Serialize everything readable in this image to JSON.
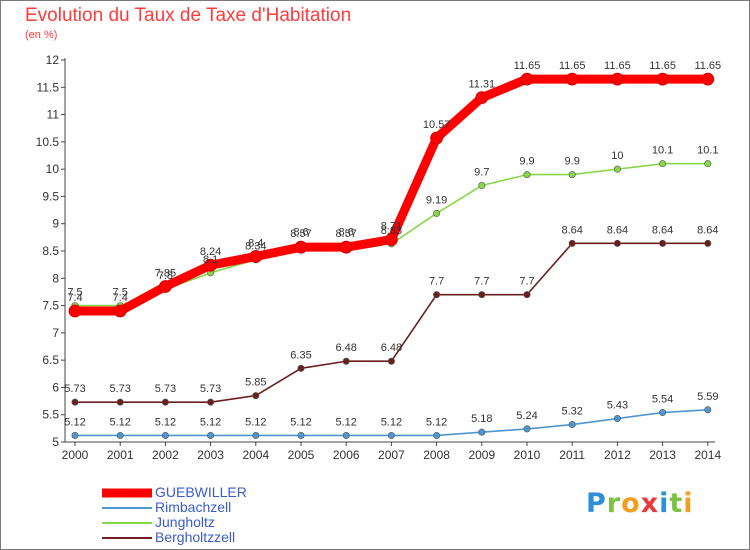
{
  "header": {
    "title": "Evolution du Taux de Taxe d'Habitation",
    "subtitle": "(en %)"
  },
  "logo": {
    "letters": [
      "P",
      "r",
      "o",
      "x",
      "i",
      "t",
      "i"
    ],
    "colors": [
      "#2e8fd6",
      "#7cc243",
      "#f0a020",
      "#e83a3a",
      "#2e8fd6",
      "#7cc243",
      "#f0a020"
    ]
  },
  "chart_data": {
    "type": "line",
    "x": [
      2000,
      2001,
      2002,
      2003,
      2004,
      2005,
      2006,
      2007,
      2008,
      2009,
      2010,
      2011,
      2012,
      2013,
      2014
    ],
    "ylim": [
      5,
      12
    ],
    "yticks": [
      "5",
      "5.5",
      "6",
      "6.5",
      "7",
      "7.5",
      "8",
      "8.5",
      "9",
      "9.5",
      "10",
      "10.5",
      "11",
      "11.5",
      "12"
    ],
    "grid": false,
    "legend_position": "bottom-left",
    "series": [
      {
        "name": "GUEBWILLER",
        "color": "#ff0000",
        "values": [
          7.4,
          7.4,
          7.85,
          8.24,
          8.4,
          8.57,
          8.57,
          8.71,
          10.57,
          11.31,
          11.65,
          11.65,
          11.65,
          11.65,
          11.65
        ],
        "labels": [
          "7.4",
          "7.4",
          "7.85",
          "8.24",
          "8.4",
          "8.57",
          "8.57",
          "8.71",
          "10.57",
          "11.31",
          "11.65",
          "11.65",
          "11.65",
          "11.65",
          "11.65"
        ]
      },
      {
        "name": "Rimbachzell",
        "color": "#4f96d0",
        "values": [
          5.12,
          5.12,
          5.12,
          5.12,
          5.12,
          5.12,
          5.12,
          5.12,
          5.12,
          5.18,
          5.24,
          5.32,
          5.43,
          5.54,
          5.59
        ],
        "labels": [
          "5.12",
          "5.12",
          "5.12",
          "5.12",
          "5.12",
          "5.12",
          "5.12",
          "5.12",
          "5.12",
          "5.18",
          "5.24",
          "5.32",
          "5.43",
          "5.54",
          "5.59"
        ]
      },
      {
        "name": "Jungholtz",
        "color": "#88d64a",
        "values": [
          7.5,
          7.5,
          7.8,
          8.1,
          8.34,
          8.6,
          8.6,
          8.63,
          9.19,
          9.7,
          9.9,
          9.9,
          10,
          10.1,
          10.1
        ],
        "labels": [
          "7.5",
          "7.5",
          "7.8",
          "8.1",
          "8.34",
          "8.6",
          "8.6",
          "8.63",
          "9.19",
          "9.7",
          "9.9",
          "9.9",
          "10",
          "10.1",
          "10.1"
        ]
      },
      {
        "name": "Bergholtzzell",
        "color": "#6b1f1f",
        "values": [
          5.73,
          5.73,
          5.73,
          5.73,
          5.85,
          6.35,
          6.48,
          6.48,
          7.7,
          7.7,
          7.7,
          8.64,
          8.64,
          8.64,
          8.64
        ],
        "labels": [
          "5.73",
          "5.73",
          "5.73",
          "5.73",
          "5.85",
          "6.35",
          "6.48",
          "6.48",
          "7.7",
          "7.7",
          "7.7",
          "8.64",
          "8.64",
          "8.64",
          "8.64"
        ]
      }
    ]
  }
}
